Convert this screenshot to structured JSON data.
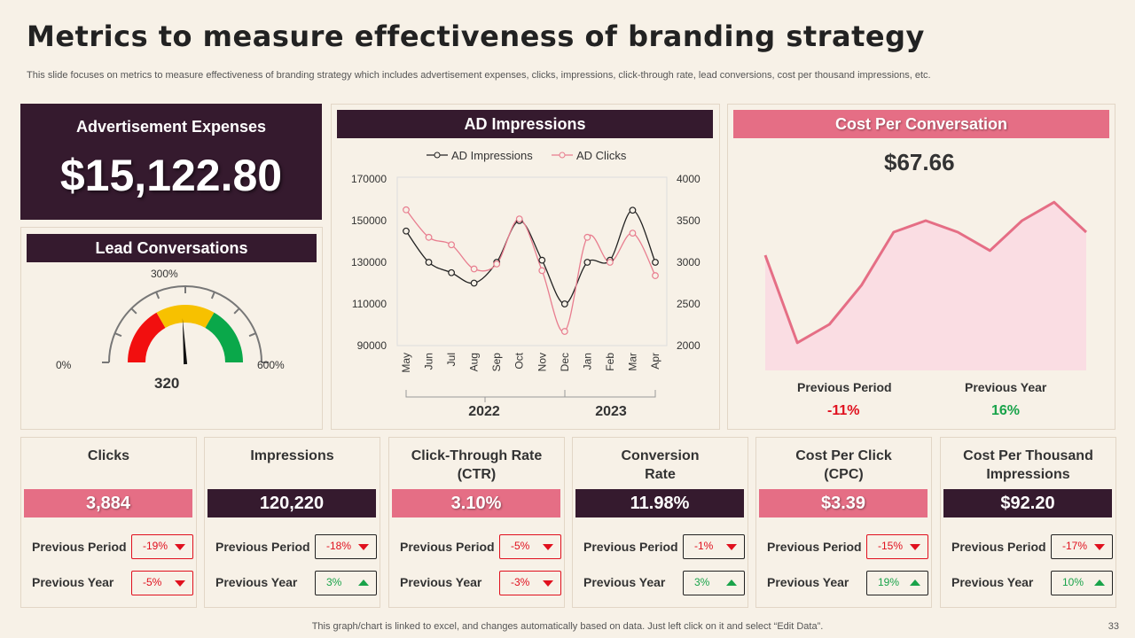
{
  "title": "Metrics to measure effectiveness of branding strategy",
  "subtitle": "This slide focuses on metrics to measure effectiveness of branding strategy which includes advertisement expenses, clicks, impressions, click-through rate, lead conversions, cost per thousand impressions, etc.",
  "ad_expenses": {
    "label": "Advertisement Expenses",
    "value": "$15,122.80"
  },
  "lead": {
    "title": "Lead Conversations",
    "min_label": "0%",
    "mid_label": "300%",
    "max_label": "600%",
    "value": "320",
    "needle_fraction": 0.48,
    "colors": {
      "red": "#f20f0f",
      "yellow": "#f7c100",
      "green": "#0aa84a"
    }
  },
  "impressions_panel": {
    "title": "AD Impressions",
    "legend_a": "AD Impressions",
    "legend_b": "AD Clicks",
    "year_a": "2022",
    "year_b": "2023"
  },
  "cost_panel": {
    "title": "Cost Per Conversation",
    "value": "$67.66",
    "prev_period_label": "Previous Period",
    "prev_period_value": "-11%",
    "prev_year_label": "Previous Year",
    "prev_year_value": "16%"
  },
  "chart_data": [
    {
      "type": "line",
      "title": "AD Impressions",
      "categories": [
        "May",
        "Jun",
        "Jul",
        "Aug",
        "Sep",
        "Oct",
        "Nov",
        "Dec",
        "Jan",
        "Feb",
        "Mar",
        "Apr"
      ],
      "series": [
        {
          "name": "AD Impressions",
          "axis": "left",
          "color": "#222222",
          "values": [
            145000,
            130000,
            125000,
            120000,
            130000,
            150000,
            131000,
            110000,
            130000,
            131000,
            155000,
            130000
          ]
        },
        {
          "name": "AD Clicks",
          "axis": "right",
          "color": "#e87d8f",
          "values": [
            3630,
            3300,
            3210,
            2920,
            2980,
            3520,
            2900,
            2170,
            3300,
            3000,
            3350,
            2840
          ]
        }
      ],
      "ylim_left": [
        90000,
        170000
      ],
      "yticks_left": [
        "90000",
        "110000",
        "130000",
        "150000",
        "170000"
      ],
      "ylim_right": [
        2000,
        4000
      ],
      "yticks_right": [
        "2000",
        "2500",
        "3000",
        "3500",
        "4000"
      ],
      "groups": [
        "2022",
        "2023"
      ]
    },
    {
      "type": "area",
      "title": "Cost Per Conversation",
      "values": [
        50,
        12,
        20,
        37,
        60,
        65,
        60,
        52,
        65,
        73,
        60
      ],
      "ylim": [
        0,
        100
      ],
      "color": "#e56e85",
      "fill": "#fadde3"
    }
  ],
  "metrics": [
    {
      "title": "Clicks",
      "value": "3,884",
      "style": "pink",
      "pp_label": "Previous Period",
      "pp_value": "-19%",
      "pp_dir": "down",
      "pp_style": "red",
      "py_label": "Previous Year",
      "py_value": "-5%",
      "py_dir": "down",
      "py_style": "red"
    },
    {
      "title": "Impressions",
      "value": "120,220",
      "style": "dark",
      "pp_label": "Previous Period",
      "pp_value": "-18%",
      "pp_dir": "down",
      "pp_style": "dark",
      "py_label": "Previous Year",
      "py_value": "3%",
      "py_dir": "up",
      "py_style": "green"
    },
    {
      "title": "Click-Through  Rate\n(CTR)",
      "value": "3.10%",
      "style": "pink",
      "pp_label": "Previous Period",
      "pp_value": "-5%",
      "pp_dir": "down",
      "pp_style": "red",
      "py_label": "Previous Year",
      "py_value": "-3%",
      "py_dir": "down",
      "py_style": "red"
    },
    {
      "title": "Conversion\nRate",
      "value": "11.98%",
      "style": "dark",
      "pp_label": "Previous Period",
      "pp_value": "-1%",
      "pp_dir": "down",
      "pp_style": "dark",
      "py_label": "Previous Year",
      "py_value": "3%",
      "py_dir": "up",
      "py_style": "green"
    },
    {
      "title": "Cost Per Click\n(CPC)",
      "value": "$3.39",
      "style": "pink",
      "pp_label": "Previous Period",
      "pp_value": "-15%",
      "pp_dir": "down",
      "pp_style": "red",
      "py_label": "Previous Year",
      "py_value": "19%",
      "py_dir": "up",
      "py_style": "green"
    },
    {
      "title": "Cost Per Thousand\nImpressions",
      "value": "$92.20",
      "style": "dark",
      "pp_label": "Previous Period",
      "pp_value": "-17%",
      "pp_dir": "down",
      "pp_style": "dark",
      "py_label": "Previous Year",
      "py_value": "10%",
      "py_dir": "up",
      "py_style": "green"
    }
  ],
  "footer": "This graph/chart is linked to excel,  and changes automatically based on data. Just left click on it and select “Edit Data”.",
  "page_number": "33"
}
